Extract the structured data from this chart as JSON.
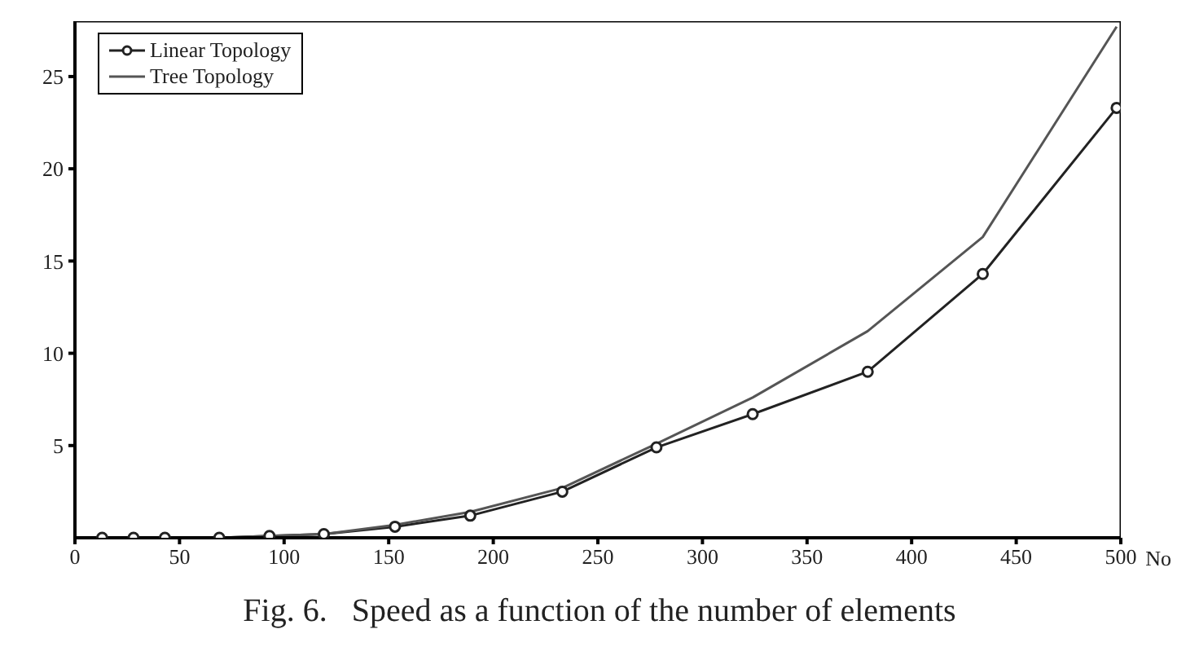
{
  "chart_data": {
    "type": "line",
    "title": "Fig. 6.   Speed as a function of the number of elements",
    "xlabel": "No",
    "x": [
      13,
      28,
      43,
      69,
      93,
      119,
      153,
      189,
      233,
      278,
      324,
      379,
      434,
      498
    ],
    "series": [
      {
        "name": "Linear Topology",
        "color": "#222222",
        "marker": "circle",
        "values": [
          0,
          0,
          0,
          0,
          0.1,
          0.2,
          0.6,
          1.2,
          2.5,
          4.9,
          6.7,
          9.0,
          14.3,
          23.3
        ]
      },
      {
        "name": "Tree Topology",
        "color": "#555555",
        "marker": "none",
        "values": [
          0,
          0,
          0,
          0,
          0.1,
          0.2,
          0.7,
          1.4,
          2.7,
          5.1,
          7.6,
          11.2,
          16.3,
          27.7
        ]
      }
    ],
    "xlim": [
      0,
      500
    ],
    "xticks": [
      0,
      50,
      100,
      150,
      200,
      250,
      300,
      350,
      400,
      450,
      500
    ],
    "ylim": [
      0,
      28
    ],
    "yticks": [
      5,
      10,
      15,
      20,
      25
    ],
    "grid": false,
    "legend": "top left"
  }
}
